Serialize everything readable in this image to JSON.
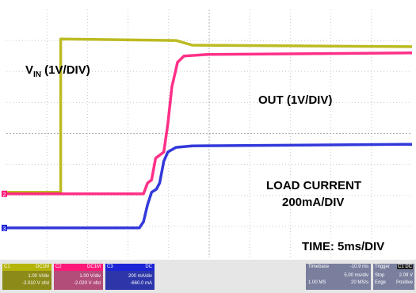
{
  "chart_data": {
    "type": "line",
    "x_range": [
      -10.9,
      39.1
    ],
    "y_range": [
      -4,
      4
    ],
    "grid": true,
    "series": [
      {
        "name": "VIN (1V/DIV)",
        "color": "#b5b40a",
        "points": [
          [
            -10.9,
            -1.9
          ],
          [
            -4.2,
            -1.9
          ],
          [
            -4.2,
            3.05
          ],
          [
            10,
            3.0
          ],
          [
            12,
            2.85
          ],
          [
            39.1,
            2.8
          ]
        ]
      },
      {
        "name": "OUT (1V/DIV)",
        "color": "#ff1a7a",
        "points": [
          [
            -10.9,
            -1.95
          ],
          [
            6.0,
            -1.95
          ],
          [
            6.5,
            -1.6
          ],
          [
            7.0,
            -1.5
          ],
          [
            7.5,
            -0.8
          ],
          [
            8.5,
            -0.6
          ],
          [
            9.0,
            0.3
          ],
          [
            9.5,
            1.5
          ],
          [
            10.2,
            2.3
          ],
          [
            11.0,
            2.5
          ],
          [
            14,
            2.55
          ],
          [
            39.1,
            2.6
          ]
        ]
      },
      {
        "name": "LOAD CURRENT 200mA/DIV",
        "color": "#1c24d6",
        "points": [
          [
            -10.9,
            -3.05
          ],
          [
            5.5,
            -3.05
          ],
          [
            6.0,
            -2.85
          ],
          [
            6.5,
            -2.3
          ],
          [
            7.0,
            -1.9
          ],
          [
            7.6,
            -1.8
          ],
          [
            8.0,
            -1.6
          ],
          [
            8.5,
            -0.9
          ],
          [
            9.0,
            -0.6
          ],
          [
            10.0,
            -0.45
          ],
          [
            12,
            -0.4
          ],
          [
            39.1,
            -0.35
          ]
        ]
      }
    ]
  },
  "labels": {
    "vin_main": "V",
    "vin_sub": "IN",
    "vin_div": " (1V/DIV)",
    "out": "OUT (1V/DIV)",
    "load1": "LOAD CURRENT",
    "load2": "200mA/DIV",
    "time": "TIME: 5ms/DIV"
  },
  "channels": [
    {
      "id": "C1",
      "tag": "DC1M",
      "scale": "1.00 V/div",
      "offset": "-2.010 V ofst",
      "color": "#b5b40a"
    },
    {
      "id": "C2",
      "tag": "DC1M",
      "scale": "1.00 V/div",
      "offset": "-2.020 V ofst",
      "color": "#ff1a7a"
    },
    {
      "id": "C3",
      "tag": "DC",
      "scale": "200 mA/div",
      "offset": "-660.0 mA",
      "color": "#1c24d6"
    }
  ],
  "timebase": {
    "title": "Timebase",
    "delay": "-10.9 ms",
    "scale": "5.00 ms/div",
    "samples": "1.00 MS",
    "rate": "20 MS/s"
  },
  "trigger": {
    "title": "Trigger",
    "channel": "C1 DC",
    "mode": "Stop",
    "level": "2.09 V",
    "type": "Edge",
    "slope": "Positive"
  },
  "markers": {
    "ch1": "1",
    "ch2": "2",
    "ch3": "3"
  },
  "colors": {
    "grid": "#c8c8c8",
    "panel": "#7a7f9e"
  }
}
